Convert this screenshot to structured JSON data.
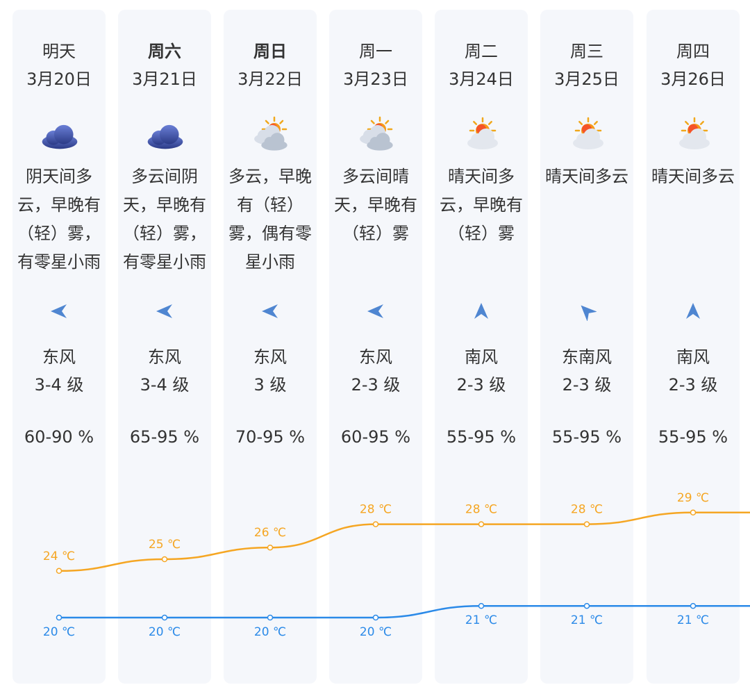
{
  "units": {
    "temp": "℃",
    "humidity": "%"
  },
  "colors": {
    "high": "#f5a623",
    "low": "#2b8ae8",
    "wind": "#4f86d1"
  },
  "days": [
    {
      "day": "明天",
      "bold": false,
      "date": "3月20日",
      "icon": "overcast-cloud-icon",
      "desc_lines": [
        "阴天间多",
        "云，早晚有",
        "（轻）雾，",
        "有零星小雨"
      ],
      "wind_icon": "wind-arrow-west-icon",
      "wind_dir": "东风",
      "wind_level": "3-4 级",
      "humidity": "60-90 %",
      "high": 24,
      "low": 20
    },
    {
      "day": "周六",
      "bold": true,
      "date": "3月21日",
      "icon": "overcast-cloud-icon",
      "desc_lines": [
        "多云间阴",
        "天，早晚有",
        "（轻）雾，",
        "有零星小雨"
      ],
      "wind_icon": "wind-arrow-west-icon",
      "wind_dir": "东风",
      "wind_level": "3-4 级",
      "humidity": "65-95 %",
      "high": 25,
      "low": 20
    },
    {
      "day": "周日",
      "bold": true,
      "date": "3月22日",
      "icon": "sun-behind-clouds-icon",
      "desc_lines": [
        "多云，早晚",
        "有（轻）",
        "雾，偶有零",
        "星小雨"
      ],
      "wind_icon": "wind-arrow-west-icon",
      "wind_dir": "东风",
      "wind_level": "3 级",
      "humidity": "70-95 %",
      "high": 26,
      "low": 20
    },
    {
      "day": "周一",
      "bold": false,
      "date": "3月23日",
      "icon": "sun-behind-clouds-icon",
      "desc_lines": [
        "多云间晴",
        "天，早晚有",
        "（轻）雾"
      ],
      "wind_icon": "wind-arrow-west-icon",
      "wind_dir": "东风",
      "wind_level": "2-3 级",
      "humidity": "60-95 %",
      "high": 28,
      "low": 20
    },
    {
      "day": "周二",
      "bold": false,
      "date": "3月24日",
      "icon": "sun-with-cloud-icon",
      "desc_lines": [
        "晴天间多",
        "云，早晚有",
        "（轻）雾"
      ],
      "wind_icon": "wind-arrow-north-icon",
      "wind_dir": "南风",
      "wind_level": "2-3 级",
      "humidity": "55-95 %",
      "high": 28,
      "low": 21
    },
    {
      "day": "周三",
      "bold": false,
      "date": "3月25日",
      "icon": "sun-with-cloud-icon",
      "desc_lines": [
        "晴天间多云"
      ],
      "wind_icon": "wind-arrow-northwest-icon",
      "wind_dir": "东南风",
      "wind_level": "2-3 级",
      "humidity": "55-95 %",
      "high": 28,
      "low": 21
    },
    {
      "day": "周四",
      "bold": false,
      "date": "3月26日",
      "icon": "sun-with-cloud-icon",
      "desc_lines": [
        "晴天间多云"
      ],
      "wind_icon": "wind-arrow-north-icon",
      "wind_dir": "南风",
      "wind_level": "2-3 级",
      "humidity": "55-95 %",
      "high": 29,
      "low": 21
    }
  ],
  "chart_data": {
    "type": "line",
    "x": [
      "3月20日",
      "3月21日",
      "3月22日",
      "3月23日",
      "3月24日",
      "3月25日",
      "3月26日"
    ],
    "series": [
      {
        "values": [
          24,
          25,
          26,
          28,
          28,
          28,
          29
        ]
      },
      {
        "values": [
          20,
          20,
          20,
          20,
          21,
          21,
          21
        ]
      }
    ],
    "ylim": [
      20,
      29
    ],
    "grid": false,
    "title": "",
    "xlabel": "",
    "ylabel": ""
  }
}
